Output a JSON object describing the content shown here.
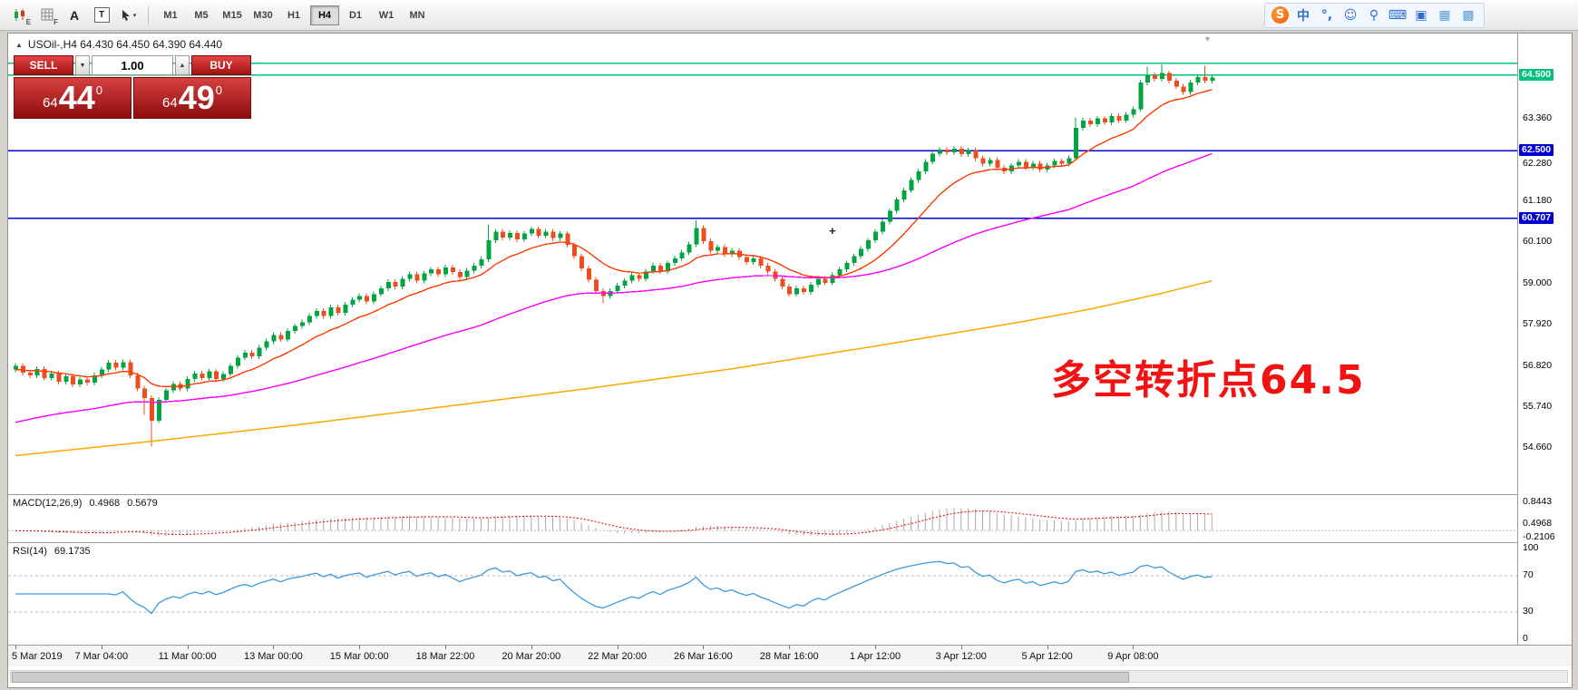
{
  "toolbar": {
    "left_icons": [
      {
        "name": "candlestick-chart-icon",
        "glyph": "E"
      },
      {
        "name": "grid-icon",
        "glyph": "F"
      },
      {
        "name": "text-label-icon",
        "glyph": "A"
      },
      {
        "name": "text-box-icon",
        "glyph": "T"
      },
      {
        "name": "cursor-tool-icon",
        "glyph": "▾"
      }
    ],
    "timeframes": [
      "M1",
      "M5",
      "M15",
      "M30",
      "H1",
      "H4",
      "D1",
      "W1",
      "MN"
    ],
    "active_timeframe": "H4",
    "right_icons": [
      {
        "name": "sogou-logo-icon",
        "glyph": "S",
        "fg": "#ffffff",
        "logo": true
      },
      {
        "name": "chinese-mode-icon",
        "glyph": "中",
        "fg": "#2f6fd2"
      },
      {
        "name": "punctuation-mode-icon",
        "glyph": "°,",
        "fg": "#2f6fd2"
      },
      {
        "name": "emoji-icon",
        "glyph": "☺",
        "fg": "#2f6fd2"
      },
      {
        "name": "voice-input-icon",
        "glyph": "⚲",
        "fg": "#2f6fd2"
      },
      {
        "name": "soft-keyboard-icon",
        "glyph": "⌨",
        "fg": "#2f6fd2"
      },
      {
        "name": "toolbox-icon",
        "glyph": "▣",
        "fg": "#2f6fd2"
      },
      {
        "name": "skin-icon",
        "glyph": "▦",
        "fg": "#5b9bd5"
      },
      {
        "name": "layout-icon",
        "glyph": "▩",
        "fg": "#5b9bd5"
      }
    ]
  },
  "chart": {
    "symbol_marker": "▲",
    "symbol_info": "USOil-,H4  64.430 64.450 64.390 64.440",
    "shift_marker": "▼",
    "plus_marker": "+",
    "trade_panel": {
      "sell_label": "SELL",
      "buy_label": "BUY",
      "volume": "1.00",
      "dropdown_glyph": "▼",
      "spinner_up_glyph": "▲",
      "sell_price": {
        "prefix": "64",
        "big": "44",
        "sup": "0"
      },
      "buy_price": {
        "prefix": "64",
        "big": "49",
        "sup": "0"
      }
    },
    "annotation": "多空转折点64.5",
    "levels": {
      "green": [
        {
          "price": 64.81,
          "label": ""
        },
        {
          "price": 64.5,
          "label": "64.500"
        }
      ],
      "blue": [
        {
          "price": 62.5,
          "label": "62.500"
        },
        {
          "price": 60.707,
          "label": "60.707"
        }
      ]
    },
    "y_ticks": [
      {
        "label": "63.360",
        "price": 63.36,
        "dy": 0
      },
      {
        "label": "62.280",
        "price": 62.28,
        "dy": 5
      },
      {
        "label": "61.180",
        "price": 61.18,
        "dy": 0
      },
      {
        "label": "60.100",
        "price": 60.1,
        "dy": 0
      },
      {
        "label": "59.000",
        "price": 59.0,
        "dy": 0
      },
      {
        "label": "57.920",
        "price": 57.92,
        "dy": 0
      },
      {
        "label": "56.820",
        "price": 56.82,
        "dy": 0
      },
      {
        "label": "55.740",
        "price": 55.74,
        "dy": 0
      },
      {
        "label": "54.660",
        "price": 54.66,
        "dy": 0
      }
    ],
    "x_axis": [
      "5 Mar 2019",
      "7 Mar 04:00",
      "11 Mar 00:00",
      "13 Mar 00:00",
      "15 Mar 00:00",
      "18 Mar 22:00",
      "20 Mar 20:00",
      "22 Mar 20:00",
      "26 Mar 16:00",
      "28 Mar 16:00",
      "1 Apr 12:00",
      "3 Apr 12:00",
      "5 Apr 12:00",
      "9 Apr 08:00"
    ]
  },
  "macd": {
    "title": "MACD(12,26,9)",
    "value_main": "0.4968",
    "value_signal": "0.5679",
    "scale": [
      "0.8443",
      "0.4968",
      "-0.2106"
    ]
  },
  "rsi": {
    "title": "RSI(14)",
    "value": "69.1735",
    "scale": [
      "100",
      "70",
      "30",
      "0"
    ],
    "levels": [
      70,
      30
    ]
  },
  "colors": {
    "up": "#00a441",
    "down": "#ee4e1f",
    "ma_fast": "#ff3d00",
    "ma_mid": "#ff00ff",
    "ma_slow": "#ffa800",
    "green_level": "#00c17e",
    "blue_level": "#0000d0",
    "rsi_line": "#3e9adf",
    "macd_hist": "#aaaaaa",
    "macd_signal": "#e00000",
    "annotation": "#f21212"
  },
  "chart_data": {
    "type": "candlestick",
    "title": "USOil- H4",
    "current": {
      "open": 64.43,
      "high": 64.45,
      "low": 64.39,
      "close": 64.44
    },
    "ylim": [
      53.4,
      65.6
    ],
    "open_first": 56.7,
    "wick_pad": 0.07,
    "x_labels_every": 12,
    "closes": [
      56.8,
      56.62,
      56.55,
      56.72,
      56.48,
      56.6,
      56.38,
      56.52,
      56.3,
      56.44,
      56.35,
      56.55,
      56.7,
      56.88,
      56.75,
      56.9,
      56.55,
      56.2,
      55.95,
      55.35,
      55.9,
      56.15,
      56.32,
      56.2,
      56.45,
      56.6,
      56.48,
      56.65,
      56.45,
      56.58,
      56.8,
      57.02,
      57.15,
      57.05,
      57.28,
      57.45,
      57.62,
      57.5,
      57.72,
      57.85,
      57.95,
      58.12,
      58.25,
      58.12,
      58.35,
      58.2,
      58.42,
      58.55,
      58.65,
      58.5,
      58.7,
      58.85,
      59.02,
      58.9,
      59.1,
      59.22,
      59.05,
      59.25,
      59.35,
      59.22,
      59.4,
      59.28,
      59.15,
      59.32,
      59.45,
      59.62,
      60.12,
      60.35,
      60.2,
      60.32,
      60.15,
      60.3,
      60.42,
      60.25,
      60.35,
      60.18,
      60.3,
      60.0,
      59.7,
      59.38,
      59.08,
      58.78,
      58.65,
      58.78,
      58.92,
      59.05,
      59.2,
      59.1,
      59.3,
      59.45,
      59.3,
      59.52,
      59.65,
      59.8,
      60.02,
      60.45,
      60.1,
      59.85,
      59.95,
      59.75,
      59.85,
      59.68,
      59.55,
      59.65,
      59.45,
      59.3,
      59.1,
      58.9,
      58.7,
      58.85,
      58.75,
      58.95,
      59.1,
      59.0,
      59.2,
      59.35,
      59.52,
      59.7,
      59.9,
      60.12,
      60.35,
      60.62,
      60.9,
      61.2,
      61.45,
      61.72,
      61.95,
      62.2,
      62.42,
      62.52,
      62.45,
      62.55,
      62.4,
      62.5,
      62.3,
      62.15,
      62.25,
      62.05,
      61.95,
      62.1,
      62.2,
      62.05,
      62.15,
      62.0,
      62.1,
      62.22,
      62.15,
      62.3,
      63.1,
      63.3,
      63.2,
      63.35,
      63.25,
      63.42,
      63.3,
      63.45,
      63.6,
      64.3,
      64.5,
      64.4,
      64.55,
      64.35,
      64.2,
      64.05,
      64.3,
      64.45,
      64.35,
      64.44
    ],
    "high_overrides": {
      "66": 60.55,
      "95": 60.65,
      "148": 63.38,
      "158": 64.72,
      "160": 64.78,
      "166": 64.75
    },
    "low_overrides": {
      "18": 55.5,
      "19": 54.66,
      "82": 58.45
    },
    "ma_fast_period": 13,
    "ma_fast_seed": 56.7,
    "ma_mid_period": 60,
    "ma_mid_seed": 55.3,
    "ma_slow_points": [
      [
        0,
        54.42
      ],
      [
        20,
        54.82
      ],
      [
        40,
        55.25
      ],
      [
        60,
        55.72
      ],
      [
        80,
        56.2
      ],
      [
        100,
        56.72
      ],
      [
        120,
        57.32
      ],
      [
        140,
        57.95
      ],
      [
        150,
        58.3
      ],
      [
        160,
        58.72
      ],
      [
        167,
        59.05
      ]
    ],
    "macd_params": [
      12,
      26,
      9
    ],
    "macd_range": [
      -0.35,
      1.25
    ],
    "rsi_period": 14
  }
}
